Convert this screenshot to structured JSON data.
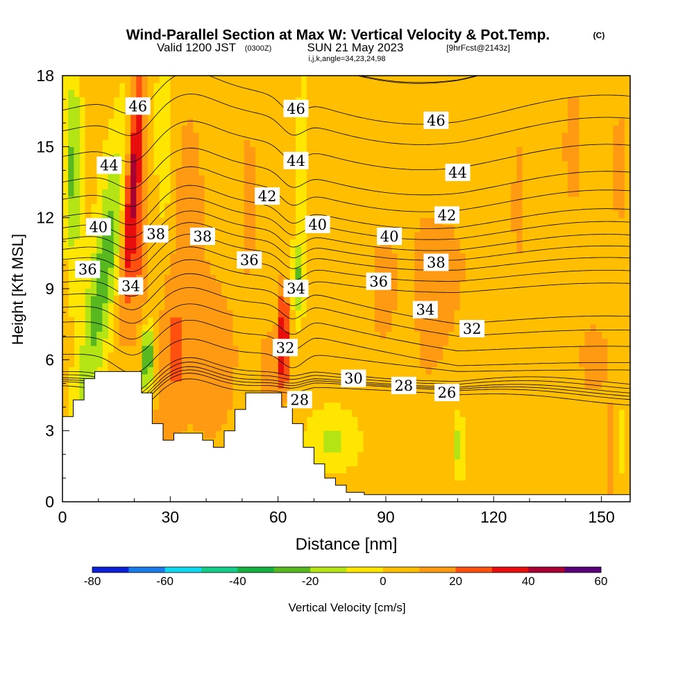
{
  "title": {
    "main": "Wind-Parallel Section at Max W: Vertical Velocity & Pot.Temp.",
    "copyright": "(C)",
    "valid_prefix": "Valid 1200 JST",
    "valid_utc": "(0300Z)",
    "valid_date": "SUN 21 May 2023",
    "forecast_info": "[9hrFcst@2143z]",
    "grid_info": "i,j,k,angle=34,23,24,98"
  },
  "chart_data": {
    "type": "heatmap",
    "xlabel": "Distance [nm]",
    "ylabel": "Height [Kft MSL]",
    "xlim": [
      0,
      158
    ],
    "ylim": [
      0,
      18
    ],
    "xticks": [
      0,
      30,
      60,
      90,
      120,
      150
    ],
    "yticks": [
      0,
      3,
      6,
      9,
      12,
      15,
      18
    ],
    "colorbar": {
      "label": "Vertical Velocity [cm/s]",
      "boundaries": [
        -80,
        -70,
        -60,
        -50,
        -40,
        -30,
        -20,
        -10,
        0,
        10,
        20,
        30,
        40,
        50,
        60
      ],
      "tick_labels": [
        "-80",
        "-60",
        "-40",
        "-20",
        "0",
        "20",
        "40",
        "60"
      ],
      "colors": [
        "#0a1fd6",
        "#1a7ae8",
        "#10d8f0",
        "#12cc88",
        "#14b040",
        "#58b820",
        "#b4e414",
        "#ffe600",
        "#ffbe00",
        "#ff9a12",
        "#ff5010",
        "#e80e0e",
        "#a80030",
        "#58007a"
      ]
    },
    "terrain": [
      [
        0,
        3.6
      ],
      [
        3,
        3.6
      ],
      [
        3,
        4.3
      ],
      [
        6,
        4.3
      ],
      [
        6,
        5.2
      ],
      [
        9,
        5.2
      ],
      [
        9,
        5.5
      ],
      [
        22,
        5.5
      ],
      [
        22,
        4.6
      ],
      [
        25,
        4.6
      ],
      [
        25,
        3.3
      ],
      [
        28,
        3.3
      ],
      [
        28,
        2.6
      ],
      [
        31,
        2.6
      ],
      [
        31,
        2.9
      ],
      [
        39,
        2.9
      ],
      [
        39,
        2.6
      ],
      [
        42,
        2.6
      ],
      [
        42,
        2.3
      ],
      [
        45,
        2.3
      ],
      [
        45,
        3
      ],
      [
        48,
        3
      ],
      [
        48,
        3.9
      ],
      [
        51,
        3.9
      ],
      [
        51,
        4.6
      ],
      [
        61,
        4.6
      ],
      [
        61,
        4
      ],
      [
        64,
        4
      ],
      [
        64,
        3.3
      ],
      [
        67,
        3.3
      ],
      [
        67,
        2.3
      ],
      [
        70,
        2.3
      ],
      [
        70,
        1.6
      ],
      [
        73,
        1.6
      ],
      [
        73,
        1
      ],
      [
        76,
        1
      ],
      [
        76,
        0.7
      ],
      [
        79,
        0.7
      ],
      [
        79,
        0.4
      ],
      [
        84,
        0.4
      ],
      [
        84,
        0.3
      ],
      [
        158,
        0.3
      ]
    ],
    "theta_contours": {
      "levels": [
        26,
        28,
        30,
        32,
        34,
        36,
        38,
        40,
        42,
        44,
        46
      ],
      "label_positions": [
        {
          "value": "46",
          "x": 21,
          "y": 16.7
        },
        {
          "value": "46",
          "x": 65,
          "y": 16.6
        },
        {
          "value": "46",
          "x": 104,
          "y": 16.1
        },
        {
          "value": "44",
          "x": 13,
          "y": 14.2
        },
        {
          "value": "44",
          "x": 65,
          "y": 14.4
        },
        {
          "value": "44",
          "x": 110,
          "y": 13.9
        },
        {
          "value": "42",
          "x": 57,
          "y": 12.9
        },
        {
          "value": "42",
          "x": 107,
          "y": 12.1
        },
        {
          "value": "40",
          "x": 10,
          "y": 11.6
        },
        {
          "value": "40",
          "x": 71,
          "y": 11.7
        },
        {
          "value": "40",
          "x": 91,
          "y": 11.2
        },
        {
          "value": "38",
          "x": 26,
          "y": 11.3
        },
        {
          "value": "38",
          "x": 39,
          "y": 11.2
        },
        {
          "value": "38",
          "x": 104,
          "y": 10.1
        },
        {
          "value": "36",
          "x": 7,
          "y": 9.8
        },
        {
          "value": "36",
          "x": 52,
          "y": 10.2
        },
        {
          "value": "36",
          "x": 88,
          "y": 9.3
        },
        {
          "value": "34",
          "x": 19,
          "y": 9.1
        },
        {
          "value": "34",
          "x": 65,
          "y": 9.0
        },
        {
          "value": "34",
          "x": 101,
          "y": 8.1
        },
        {
          "value": "32",
          "x": 62,
          "y": 6.5
        },
        {
          "value": "32",
          "x": 114,
          "y": 7.3
        },
        {
          "value": "30",
          "x": 81,
          "y": 5.2
        },
        {
          "value": "28",
          "x": 95,
          "y": 4.9
        },
        {
          "value": "28",
          "x": 66,
          "y": 4.3
        },
        {
          "value": "26",
          "x": 107,
          "y": 4.6
        }
      ]
    }
  }
}
